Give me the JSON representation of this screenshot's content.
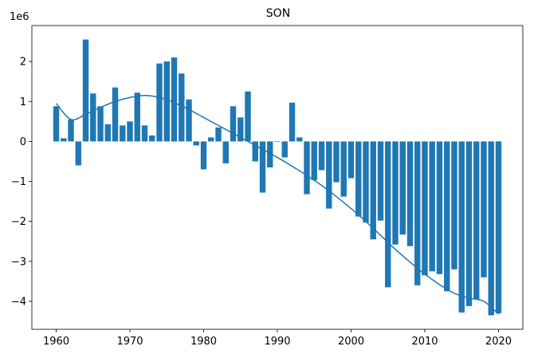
{
  "chart_data": {
    "type": "bar",
    "title": "SON",
    "xlabel": "",
    "ylabel": "",
    "offset_label": "1e6",
    "xlim": [
      1956.7,
      2023.3
    ],
    "ylim": [
      -4.7,
      2.9
    ],
    "x_ticks": [
      1960,
      1970,
      1980,
      1990,
      2000,
      2010,
      2020
    ],
    "y_ticks": [
      2,
      1,
      0,
      -1,
      -2,
      -3,
      -4
    ],
    "y_tick_labels": [
      "2",
      "1",
      "0",
      "−1",
      "−2",
      "−3",
      "−4"
    ],
    "grid": false,
    "bar_color": "#1f77b4",
    "line_color": "#1f77b4",
    "years": [
      1960,
      1961,
      1962,
      1963,
      1964,
      1965,
      1966,
      1967,
      1968,
      1969,
      1970,
      1971,
      1972,
      1973,
      1974,
      1975,
      1976,
      1977,
      1978,
      1979,
      1980,
      1981,
      1982,
      1983,
      1984,
      1985,
      1986,
      1987,
      1988,
      1989,
      1990,
      1991,
      1992,
      1993,
      1994,
      1995,
      1996,
      1997,
      1998,
      1999,
      2000,
      2001,
      2002,
      2003,
      2004,
      2005,
      2006,
      2007,
      2008,
      2009,
      2010,
      2011,
      2012,
      2013,
      2014,
      2015,
      2016,
      2017,
      2018,
      2019,
      2020
    ],
    "values": [
      0.88,
      0.08,
      0.55,
      -0.6,
      2.55,
      1.2,
      0.88,
      0.43,
      1.35,
      0.4,
      0.5,
      1.22,
      0.4,
      0.15,
      1.95,
      2.0,
      2.1,
      1.7,
      1.05,
      -0.1,
      -0.7,
      0.1,
      0.35,
      -0.55,
      0.88,
      0.6,
      1.25,
      -0.5,
      -1.28,
      -0.65,
      0.0,
      -0.4,
      0.97,
      0.1,
      -1.32,
      -0.97,
      -0.72,
      -1.68,
      -1.02,
      -1.38,
      -0.92,
      -1.88,
      -2.03,
      -2.45,
      -1.98,
      -3.65,
      -2.58,
      -2.33,
      -2.62,
      -3.6,
      -3.35,
      -3.25,
      -3.32,
      -3.75,
      -3.2,
      -4.28,
      -4.12,
      -3.95,
      -3.4,
      -4.35,
      -4.3
    ],
    "trend_line": {
      "x": [
        1960,
        1962,
        1964,
        1966,
        1968,
        1970,
        1972,
        1974,
        1976,
        1978,
        1980,
        1982,
        1984,
        1986,
        1988,
        1990,
        1992,
        1994,
        1996,
        1998,
        2000,
        2002,
        2004,
        2006,
        2008,
        2010,
        2012,
        2014,
        2016,
        2018,
        2020
      ],
      "y": [
        0.95,
        0.55,
        0.68,
        0.85,
        1.0,
        1.1,
        1.15,
        1.1,
        0.97,
        0.8,
        0.6,
        0.4,
        0.2,
        0.0,
        -0.2,
        -0.4,
        -0.62,
        -0.85,
        -1.1,
        -1.38,
        -1.68,
        -2.0,
        -2.35,
        -2.7,
        -3.02,
        -3.32,
        -3.58,
        -3.8,
        -3.92,
        -4.0,
        -4.32
      ]
    }
  }
}
